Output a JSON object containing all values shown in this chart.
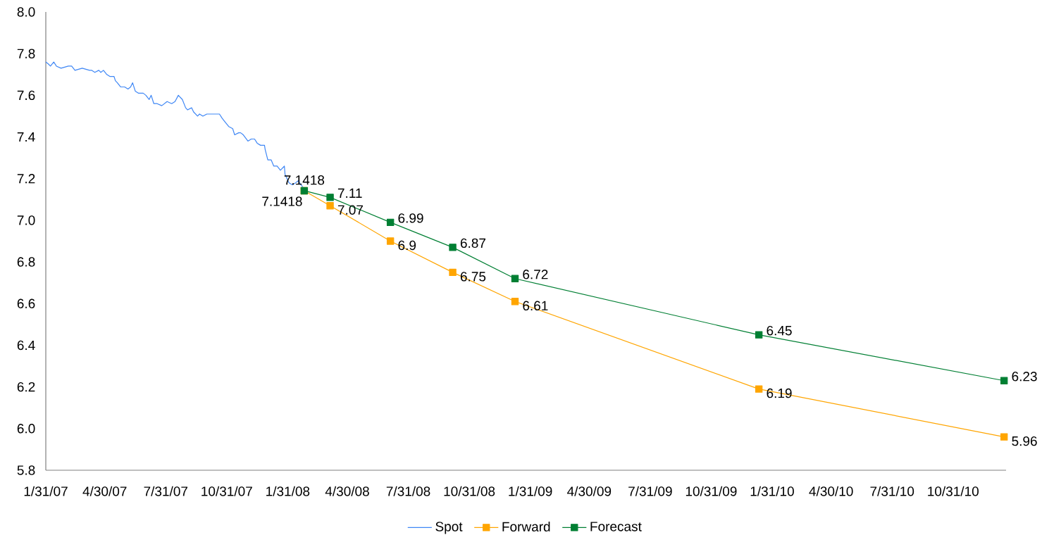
{
  "chart_data": {
    "type": "line",
    "xlim": [
      "2007-01-31",
      "2011-01-19"
    ],
    "xticks": [
      {
        "value": "2007-01-31",
        "label": "1/31/07"
      },
      {
        "value": "2007-04-30",
        "label": "4/30/07"
      },
      {
        "value": "2007-07-31",
        "label": "7/31/07"
      },
      {
        "value": "2007-10-31",
        "label": "10/31/07"
      },
      {
        "value": "2008-01-31",
        "label": "1/31/08"
      },
      {
        "value": "2008-04-30",
        "label": "4/30/08"
      },
      {
        "value": "2008-07-31",
        "label": "7/31/08"
      },
      {
        "value": "2008-10-31",
        "label": "10/31/08"
      },
      {
        "value": "2009-01-31",
        "label": "1/31/09"
      },
      {
        "value": "2009-04-30",
        "label": "4/30/09"
      },
      {
        "value": "2009-07-31",
        "label": "7/31/09"
      },
      {
        "value": "2009-10-31",
        "label": "10/31/09"
      },
      {
        "value": "2010-01-31",
        "label": "1/31/10"
      },
      {
        "value": "2010-04-30",
        "label": "4/30/10"
      },
      {
        "value": "2010-07-31",
        "label": "7/31/10"
      },
      {
        "value": "2010-10-31",
        "label": "10/31/10"
      }
    ],
    "ylim": [
      5.8,
      8.0
    ],
    "yticks": [
      {
        "value": 5.8,
        "label": "5.8"
      },
      {
        "value": 6.0,
        "label": "6.0"
      },
      {
        "value": 6.2,
        "label": "6.2"
      },
      {
        "value": 6.4,
        "label": "6.4"
      },
      {
        "value": 6.6,
        "label": "6.6"
      },
      {
        "value": 6.8,
        "label": "6.8"
      },
      {
        "value": 7.0,
        "label": "7.0"
      },
      {
        "value": 7.2,
        "label": "7.2"
      },
      {
        "value": 7.4,
        "label": "7.4"
      },
      {
        "value": 7.6,
        "label": "7.6"
      },
      {
        "value": 7.8,
        "label": "7.8"
      },
      {
        "value": 8.0,
        "label": "8.0"
      }
    ],
    "grid": false,
    "legend": "bottom",
    "series": [
      {
        "name": "Spot",
        "color": "#3f87f5",
        "marker": "none",
        "x": [
          "2007-01-31",
          "2007-02-04",
          "2007-02-07",
          "2007-02-12",
          "2007-02-16",
          "2007-02-23",
          "2007-03-06",
          "2007-03-11",
          "2007-03-16",
          "2007-03-27",
          "2007-04-07",
          "2007-04-10",
          "2007-04-15",
          "2007-04-21",
          "2007-04-24",
          "2007-04-28",
          "2007-05-03",
          "2007-05-08",
          "2007-05-14",
          "2007-05-16",
          "2007-05-19",
          "2007-05-24",
          "2007-05-30",
          "2007-06-04",
          "2007-06-08",
          "2007-06-11",
          "2007-06-15",
          "2007-06-20",
          "2007-06-27",
          "2007-07-01",
          "2007-07-06",
          "2007-07-09",
          "2007-07-13",
          "2007-07-18",
          "2007-07-25",
          "2007-08-02",
          "2007-08-09",
          "2007-08-14",
          "2007-08-19",
          "2007-08-25",
          "2007-08-30",
          "2007-09-02",
          "2007-09-08",
          "2007-09-11",
          "2007-09-17",
          "2007-09-20",
          "2007-09-25",
          "2007-10-01",
          "2007-10-08",
          "2007-10-15",
          "2007-10-20",
          "2007-10-24",
          "2007-10-29",
          "2007-11-03",
          "2007-11-09",
          "2007-11-12",
          "2007-11-18",
          "2007-11-21",
          "2007-11-25",
          "2007-12-02",
          "2007-12-07",
          "2007-12-12",
          "2007-12-16",
          "2007-12-21",
          "2007-12-27",
          "2007-12-28",
          "2008-01-01",
          "2008-01-06",
          "2008-01-10",
          "2008-01-15",
          "2008-01-20",
          "2008-01-26",
          "2008-01-27",
          "2008-02-02",
          "2008-02-07",
          "2008-02-12",
          "2008-02-16",
          "2008-02-20",
          "2008-02-23"
        ],
        "values": [
          7.76,
          7.75,
          7.74,
          7.76,
          7.74,
          7.73,
          7.74,
          7.74,
          7.72,
          7.73,
          7.72,
          7.72,
          7.71,
          7.72,
          7.71,
          7.72,
          7.7,
          7.69,
          7.69,
          7.67,
          7.66,
          7.64,
          7.64,
          7.63,
          7.64,
          7.66,
          7.62,
          7.61,
          7.61,
          7.6,
          7.58,
          7.6,
          7.56,
          7.56,
          7.55,
          7.57,
          7.56,
          7.57,
          7.6,
          7.58,
          7.54,
          7.53,
          7.54,
          7.52,
          7.5,
          7.51,
          7.5,
          7.51,
          7.51,
          7.51,
          7.51,
          7.49,
          7.47,
          7.45,
          7.44,
          7.41,
          7.42,
          7.42,
          7.41,
          7.38,
          7.39,
          7.39,
          7.37,
          7.36,
          7.36,
          7.34,
          7.29,
          7.29,
          7.26,
          7.26,
          7.24,
          7.26,
          7.22,
          7.18,
          7.17,
          7.18,
          7.19,
          7.17,
          7.16
        ]
      },
      {
        "name": "Forward",
        "color": "#ffa500",
        "marker": "square",
        "x": [
          "2008-02-25",
          "2008-04-04",
          "2008-07-04",
          "2008-10-06",
          "2009-01-08",
          "2010-01-11",
          "2011-01-16"
        ],
        "values": [
          7.1418,
          7.07,
          6.9,
          6.75,
          6.61,
          6.19,
          5.96
        ],
        "value_labels": [
          "7.1418",
          "7.07",
          "6.9",
          "6.75",
          "6.61",
          "6.19",
          "5.96"
        ]
      },
      {
        "name": "Forecast",
        "color": "#007f33",
        "marker": "square",
        "x": [
          "2008-02-25",
          "2008-04-04",
          "2008-07-04",
          "2008-10-06",
          "2009-01-08",
          "2010-01-11",
          "2011-01-16"
        ],
        "values": [
          7.1418,
          7.11,
          6.99,
          6.87,
          6.72,
          6.45,
          6.23
        ],
        "value_labels": [
          "7.1418",
          "7.11",
          "6.99",
          "6.87",
          "6.72",
          "6.45",
          "6.23"
        ]
      }
    ]
  }
}
